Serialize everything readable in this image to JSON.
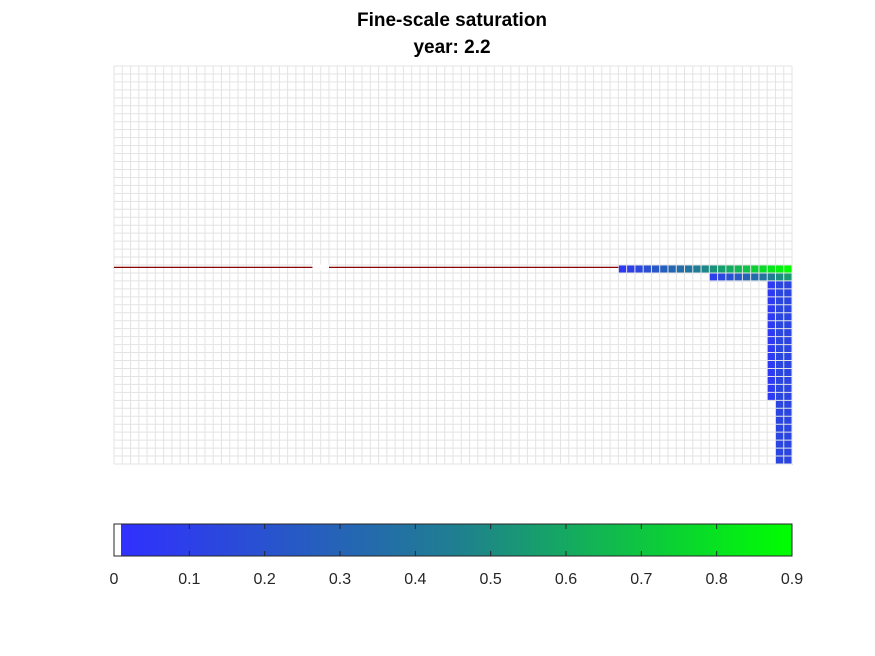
{
  "chart_data": {
    "type": "heatmap",
    "title": "Fine-scale saturation",
    "subtitle": "year: 2.2",
    "grid": true,
    "colors": {
      "grid": "#e3e3e3",
      "well": "#8b0000",
      "cmap_low": "#3030ff",
      "cmap_mid": "#1f7f90",
      "cmap_high": "#00ff00"
    },
    "colorbar": {
      "placement": "bottom",
      "range": [
        0,
        0.9
      ],
      "ticks": [
        "0",
        "0.1",
        "0.2",
        "0.3",
        "0.4",
        "0.5",
        "0.6",
        "0.7",
        "0.8",
        "0.9"
      ]
    },
    "grid_dims": {
      "cols": 82,
      "rows": 50
    },
    "well": {
      "row": 25.3,
      "gap_cols": [
        24,
        26
      ]
    },
    "saturation_cells": [
      {
        "c0": 61,
        "c1": 82,
        "r0": 25,
        "r1": 26,
        "type": "gradient",
        "s_from": 0.05,
        "s_to": 0.9
      },
      {
        "c0": 72,
        "c1": 82,
        "r0": 26,
        "r1": 27,
        "type": "gradient",
        "s_from": 0.08,
        "s_to": 0.55
      },
      {
        "c0": 79,
        "c1": 80,
        "r0": 27,
        "r1": 42,
        "type": "solid",
        "s": 0.05
      },
      {
        "c0": 80,
        "c1": 82,
        "r0": 27,
        "r1": 50,
        "type": "solid",
        "s": 0.12
      }
    ]
  }
}
